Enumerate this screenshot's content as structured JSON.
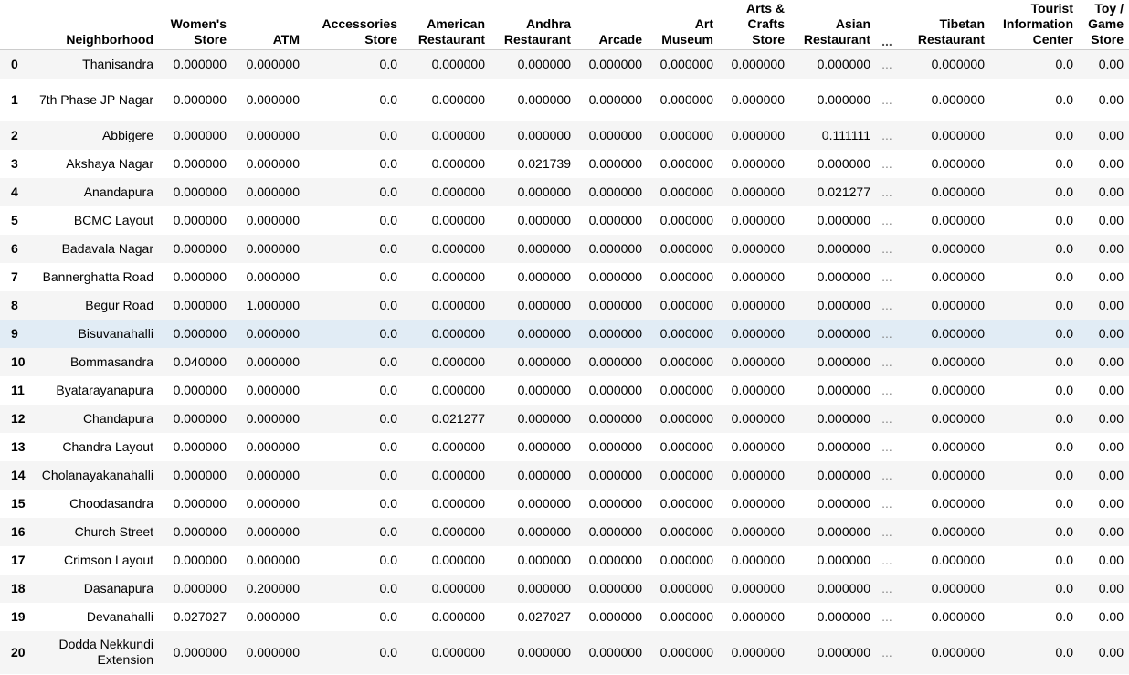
{
  "table": {
    "columns": [
      "Neighborhood",
      "Women's Store",
      "ATM",
      "Accessories Store",
      "American Restaurant",
      "Andhra Restaurant",
      "Arcade",
      "Art Museum",
      "Arts & Crafts Store",
      "Asian Restaurant",
      "...",
      "Tibetan Restaurant",
      "Tourist Information Center",
      "Toy / Game Store"
    ],
    "rows": [
      {
        "index": "0",
        "cells": [
          "Thanisandra",
          "0.000000",
          "0.000000",
          "0.0",
          "0.000000",
          "0.000000",
          "0.000000",
          "0.000000",
          "0.000000",
          "0.000000",
          "...",
          "0.000000",
          "0.0",
          "0.00"
        ]
      },
      {
        "index": "1",
        "cells": [
          "7th Phase JP Nagar",
          "0.000000",
          "0.000000",
          "0.0",
          "0.000000",
          "0.000000",
          "0.000000",
          "0.000000",
          "0.000000",
          "0.000000",
          "...",
          "0.000000",
          "0.0",
          "0.00"
        ]
      },
      {
        "index": "2",
        "cells": [
          "Abbigere",
          "0.000000",
          "0.000000",
          "0.0",
          "0.000000",
          "0.000000",
          "0.000000",
          "0.000000",
          "0.000000",
          "0.111111",
          "...",
          "0.000000",
          "0.0",
          "0.00"
        ]
      },
      {
        "index": "3",
        "cells": [
          "Akshaya Nagar",
          "0.000000",
          "0.000000",
          "0.0",
          "0.000000",
          "0.021739",
          "0.000000",
          "0.000000",
          "0.000000",
          "0.000000",
          "...",
          "0.000000",
          "0.0",
          "0.00"
        ]
      },
      {
        "index": "4",
        "cells": [
          "Anandapura",
          "0.000000",
          "0.000000",
          "0.0",
          "0.000000",
          "0.000000",
          "0.000000",
          "0.000000",
          "0.000000",
          "0.021277",
          "...",
          "0.000000",
          "0.0",
          "0.00"
        ]
      },
      {
        "index": "5",
        "cells": [
          "BCMC Layout",
          "0.000000",
          "0.000000",
          "0.0",
          "0.000000",
          "0.000000",
          "0.000000",
          "0.000000",
          "0.000000",
          "0.000000",
          "...",
          "0.000000",
          "0.0",
          "0.00"
        ]
      },
      {
        "index": "6",
        "cells": [
          "Badavala Nagar",
          "0.000000",
          "0.000000",
          "0.0",
          "0.000000",
          "0.000000",
          "0.000000",
          "0.000000",
          "0.000000",
          "0.000000",
          "...",
          "0.000000",
          "0.0",
          "0.00"
        ]
      },
      {
        "index": "7",
        "cells": [
          "Bannerghatta Road",
          "0.000000",
          "0.000000",
          "0.0",
          "0.000000",
          "0.000000",
          "0.000000",
          "0.000000",
          "0.000000",
          "0.000000",
          "...",
          "0.000000",
          "0.0",
          "0.00"
        ]
      },
      {
        "index": "8",
        "cells": [
          "Begur Road",
          "0.000000",
          "1.000000",
          "0.0",
          "0.000000",
          "0.000000",
          "0.000000",
          "0.000000",
          "0.000000",
          "0.000000",
          "...",
          "0.000000",
          "0.0",
          "0.00"
        ]
      },
      {
        "index": "9",
        "cells": [
          "Bisuvanahalli",
          "0.000000",
          "0.000000",
          "0.0",
          "0.000000",
          "0.000000",
          "0.000000",
          "0.000000",
          "0.000000",
          "0.000000",
          "...",
          "0.000000",
          "0.0",
          "0.00"
        ]
      },
      {
        "index": "10",
        "cells": [
          "Bommasandra",
          "0.040000",
          "0.000000",
          "0.0",
          "0.000000",
          "0.000000",
          "0.000000",
          "0.000000",
          "0.000000",
          "0.000000",
          "...",
          "0.000000",
          "0.0",
          "0.00"
        ]
      },
      {
        "index": "11",
        "cells": [
          "Byatarayanapura",
          "0.000000",
          "0.000000",
          "0.0",
          "0.000000",
          "0.000000",
          "0.000000",
          "0.000000",
          "0.000000",
          "0.000000",
          "...",
          "0.000000",
          "0.0",
          "0.00"
        ]
      },
      {
        "index": "12",
        "cells": [
          "Chandapura",
          "0.000000",
          "0.000000",
          "0.0",
          "0.021277",
          "0.000000",
          "0.000000",
          "0.000000",
          "0.000000",
          "0.000000",
          "...",
          "0.000000",
          "0.0",
          "0.00"
        ]
      },
      {
        "index": "13",
        "cells": [
          "Chandra Layout",
          "0.000000",
          "0.000000",
          "0.0",
          "0.000000",
          "0.000000",
          "0.000000",
          "0.000000",
          "0.000000",
          "0.000000",
          "...",
          "0.000000",
          "0.0",
          "0.00"
        ]
      },
      {
        "index": "14",
        "cells": [
          "Cholanayakanahalli",
          "0.000000",
          "0.000000",
          "0.0",
          "0.000000",
          "0.000000",
          "0.000000",
          "0.000000",
          "0.000000",
          "0.000000",
          "...",
          "0.000000",
          "0.0",
          "0.00"
        ]
      },
      {
        "index": "15",
        "cells": [
          "Choodasandra",
          "0.000000",
          "0.000000",
          "0.0",
          "0.000000",
          "0.000000",
          "0.000000",
          "0.000000",
          "0.000000",
          "0.000000",
          "...",
          "0.000000",
          "0.0",
          "0.00"
        ]
      },
      {
        "index": "16",
        "cells": [
          "Church Street",
          "0.000000",
          "0.000000",
          "0.0",
          "0.000000",
          "0.000000",
          "0.000000",
          "0.000000",
          "0.000000",
          "0.000000",
          "...",
          "0.000000",
          "0.0",
          "0.00"
        ]
      },
      {
        "index": "17",
        "cells": [
          "Crimson Layout",
          "0.000000",
          "0.000000",
          "0.0",
          "0.000000",
          "0.000000",
          "0.000000",
          "0.000000",
          "0.000000",
          "0.000000",
          "...",
          "0.000000",
          "0.0",
          "0.00"
        ]
      },
      {
        "index": "18",
        "cells": [
          "Dasanapura",
          "0.000000",
          "0.200000",
          "0.0",
          "0.000000",
          "0.000000",
          "0.000000",
          "0.000000",
          "0.000000",
          "0.000000",
          "...",
          "0.000000",
          "0.0",
          "0.00"
        ]
      },
      {
        "index": "19",
        "cells": [
          "Devanahalli",
          "0.027027",
          "0.000000",
          "0.0",
          "0.000000",
          "0.027027",
          "0.000000",
          "0.000000",
          "0.000000",
          "0.000000",
          "...",
          "0.000000",
          "0.0",
          "0.00"
        ]
      },
      {
        "index": "20",
        "cells": [
          "Dodda Nekkundi Extension",
          "0.000000",
          "0.000000",
          "0.0",
          "0.000000",
          "0.000000",
          "0.000000",
          "0.000000",
          "0.000000",
          "0.000000",
          "...",
          "0.000000",
          "0.0",
          "0.00"
        ]
      }
    ],
    "highlight_color": "#e1ecf5",
    "stripe_color": "#f5f5f5"
  }
}
